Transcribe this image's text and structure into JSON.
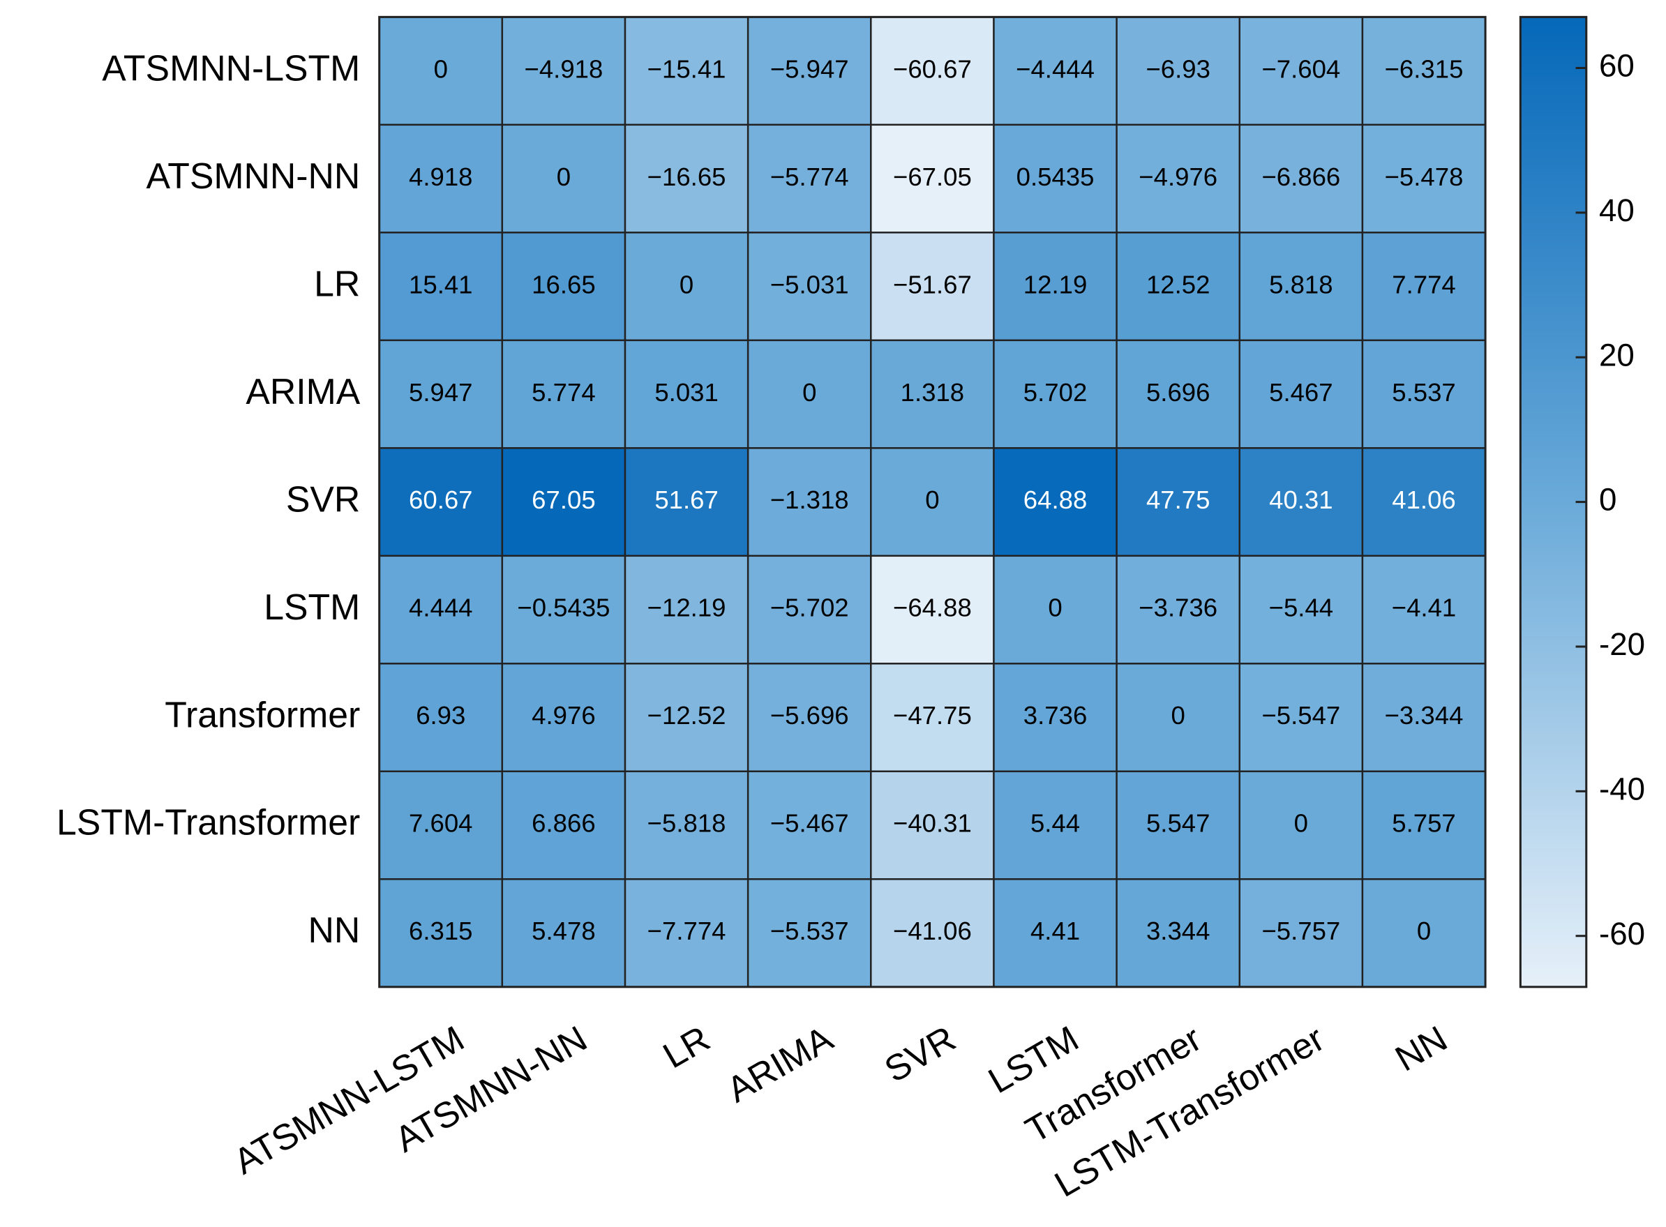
{
  "chart_data": {
    "type": "heatmap",
    "x_categories": [
      "ATSMNN-LSTM",
      "ATSMNN-NN",
      "LR",
      "ARIMA",
      "SVR",
      "LSTM",
      "Transformer",
      "LSTM-Transformer",
      "NN"
    ],
    "y_categories": [
      "ATSMNN-LSTM",
      "ATSMNN-NN",
      "LR",
      "ARIMA",
      "SVR",
      "LSTM",
      "Transformer",
      "LSTM-Transformer",
      "NN"
    ],
    "values": [
      [
        0,
        -4.918,
        -15.41,
        -5.947,
        -60.67,
        -4.444,
        -6.93,
        -7.604,
        -6.315
      ],
      [
        4.918,
        0,
        -16.65,
        -5.774,
        -67.05,
        0.5435,
        -4.976,
        -6.866,
        -5.478
      ],
      [
        15.41,
        16.65,
        0,
        -5.031,
        -51.67,
        12.19,
        12.52,
        5.818,
        7.774
      ],
      [
        5.947,
        5.774,
        5.031,
        0,
        1.318,
        5.702,
        5.696,
        5.467,
        5.537
      ],
      [
        60.67,
        67.05,
        51.67,
        -1.318,
        0,
        64.88,
        47.75,
        40.31,
        41.06
      ],
      [
        4.444,
        -0.5435,
        -12.19,
        -5.702,
        -64.88,
        0,
        -3.736,
        -5.44,
        -4.41
      ],
      [
        6.93,
        4.976,
        -12.52,
        -5.696,
        -47.75,
        3.736,
        0,
        -5.547,
        -3.344
      ],
      [
        7.604,
        6.866,
        -5.818,
        -5.467,
        -40.31,
        5.44,
        5.547,
        0,
        5.757
      ],
      [
        6.315,
        5.478,
        -7.774,
        -5.537,
        -41.06,
        4.41,
        3.344,
        -5.757,
        0
      ]
    ],
    "value_labels": [
      [
        "0",
        "−4.918",
        "−15.41",
        "−5.947",
        "−60.67",
        "−4.444",
        "−6.93",
        "−7.604",
        "−6.315"
      ],
      [
        "4.918",
        "0",
        "−16.65",
        "−5.774",
        "−67.05",
        "0.5435",
        "−4.976",
        "−6.866",
        "−5.478"
      ],
      [
        "15.41",
        "16.65",
        "0",
        "−5.031",
        "−51.67",
        "12.19",
        "12.52",
        "5.818",
        "7.774"
      ],
      [
        "5.947",
        "5.774",
        "5.031",
        "0",
        "1.318",
        "5.702",
        "5.696",
        "5.467",
        "5.537"
      ],
      [
        "60.67",
        "67.05",
        "51.67",
        "−1.318",
        "0",
        "64.88",
        "47.75",
        "40.31",
        "41.06"
      ],
      [
        "4.444",
        "−0.5435",
        "−12.19",
        "−5.702",
        "−64.88",
        "0",
        "−3.736",
        "−5.44",
        "−4.41"
      ],
      [
        "6.93",
        "4.976",
        "−12.52",
        "−5.696",
        "−47.75",
        "3.736",
        "0",
        "−5.547",
        "−3.344"
      ],
      [
        "7.604",
        "6.866",
        "−5.818",
        "−5.467",
        "−40.31",
        "5.44",
        "5.547",
        "0",
        "5.757"
      ],
      [
        "6.315",
        "5.478",
        "−7.774",
        "−5.537",
        "−41.06",
        "4.41",
        "3.344",
        "−5.757",
        "0"
      ]
    ],
    "clim": [
      -67.05,
      67.05
    ],
    "colorbar_ticks": [
      -60,
      -40,
      -20,
      0,
      20,
      40,
      60
    ],
    "colormap": [
      "#e6f0f9",
      "#6aaad9",
      "#0568b9"
    ]
  }
}
